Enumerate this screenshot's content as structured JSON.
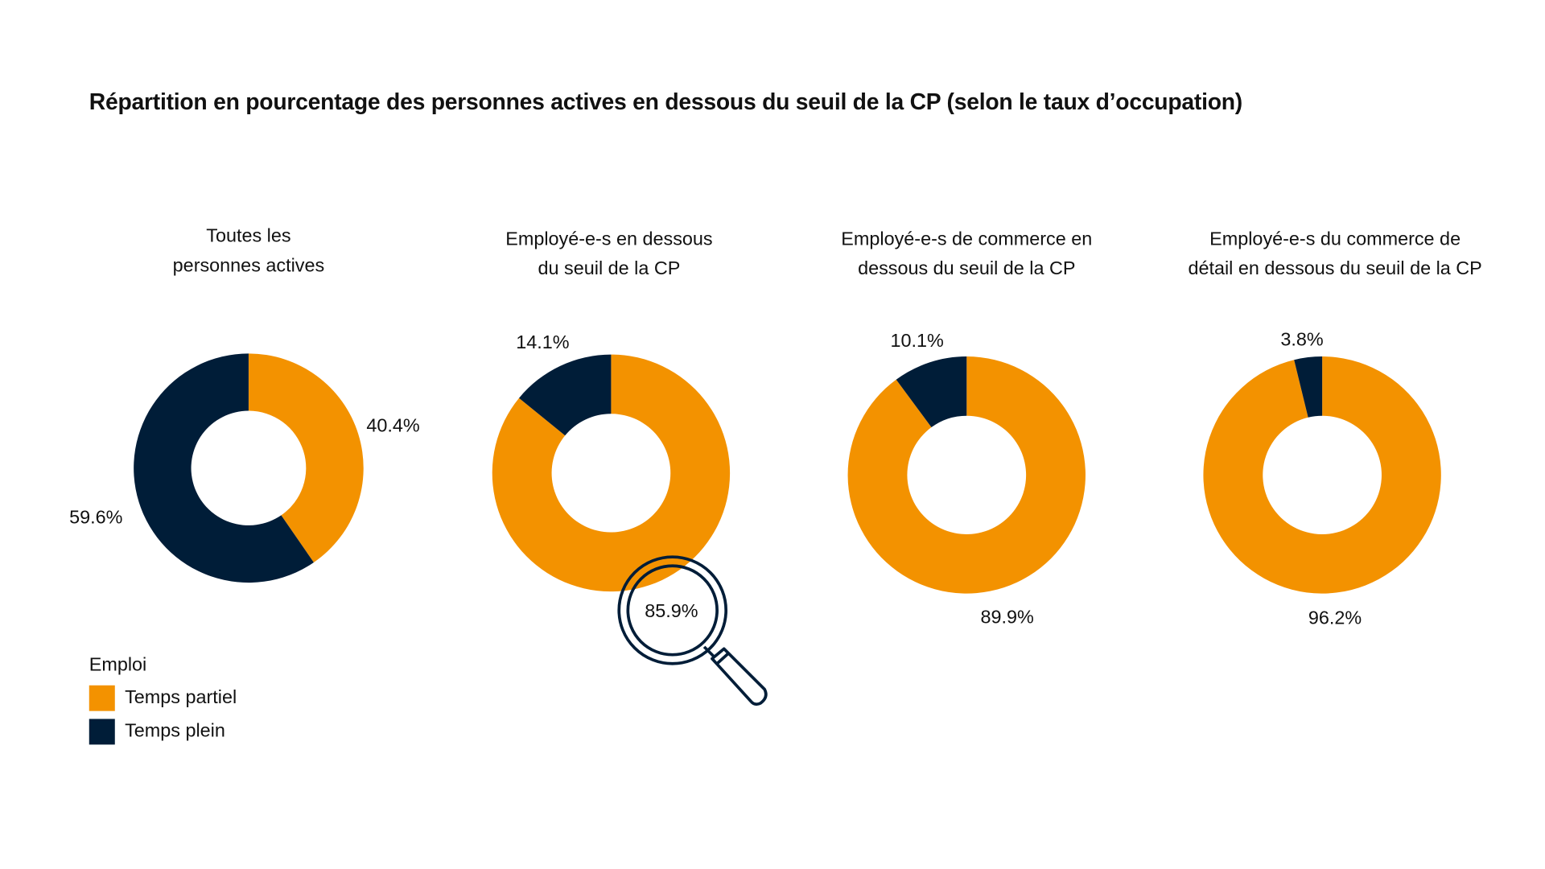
{
  "title": "Répartition en pourcentage des personnes actives en dessous du seuil de la CP (selon le taux d’occupation)",
  "colors": {
    "temps_partiel": "#F39200",
    "temps_plein": "#001D38"
  },
  "legend": {
    "title": "Emploi",
    "items": [
      "Temps partiel",
      "Temps plein"
    ]
  },
  "chart_data": [
    {
      "type": "pie",
      "donut": true,
      "title": "Toutes les personnes actives",
      "title_lines": [
        "Toutes les",
        "personnes actives"
      ],
      "categories": [
        "Temps partiel",
        "Temps plein"
      ],
      "values": [
        40.4,
        59.6
      ],
      "labels": [
        "40.4%",
        "59.6%"
      ]
    },
    {
      "type": "pie",
      "donut": true,
      "title": "Employé-e-s en dessous du seuil de la CP",
      "title_lines": [
        "Employé-e-s en dessous",
        "du seuil de la CP"
      ],
      "categories": [
        "Temps partiel",
        "Temps plein"
      ],
      "values": [
        85.9,
        14.1
      ],
      "labels": [
        "85.9%",
        "14.1%"
      ]
    },
    {
      "type": "pie",
      "donut": true,
      "title": "Employé-e-s de commerce en dessous du seuil de la CP",
      "title_lines": [
        "Employé-e-s de commerce en",
        "dessous du seuil de la CP"
      ],
      "categories": [
        "Temps partiel",
        "Temps plein"
      ],
      "values": [
        89.9,
        10.1
      ],
      "labels": [
        "89.9%",
        "10.1%"
      ]
    },
    {
      "type": "pie",
      "donut": true,
      "title": "Employé-e-s du commerce de détail en dessous du seuil de la CP",
      "title_lines": [
        "Employé-e-s du commerce de",
        "détail en dessous du seuil de la CP"
      ],
      "categories": [
        "Temps partiel",
        "Temps plein"
      ],
      "values": [
        96.2,
        3.8
      ],
      "labels": [
        "96.2%",
        "3.8%"
      ]
    }
  ],
  "decoration": {
    "icon": "magnifier-icon"
  }
}
